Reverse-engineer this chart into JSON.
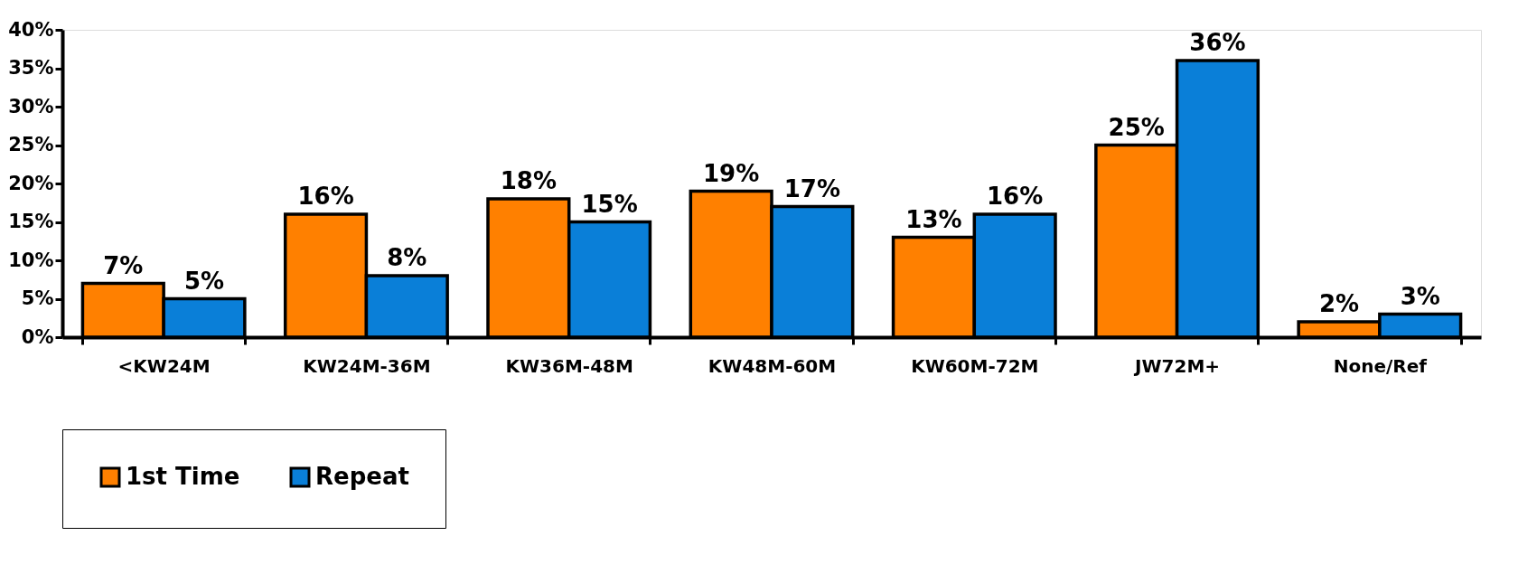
{
  "chart_data": {
    "type": "bar",
    "categories": [
      "<KW24M",
      "KW24M-36M",
      "KW36M-48M",
      "KW48M-60M",
      "KW60M-72M",
      "JW72M+",
      "None/Ref"
    ],
    "series": [
      {
        "name": "1st Time",
        "color": "#ff8000",
        "values": [
          7,
          16,
          18,
          19,
          13,
          25,
          2
        ],
        "value_labels": [
          "7%",
          "16%",
          "18%",
          "19%",
          "13%",
          "25%",
          "2%"
        ]
      },
      {
        "name": "Repeat",
        "color": "#0a7fd8",
        "values": [
          5,
          8,
          15,
          17,
          16,
          36,
          3
        ],
        "value_labels": [
          "5%",
          "8%",
          "15%",
          "17%",
          "16%",
          "36%",
          "3%"
        ]
      }
    ],
    "ylim": [
      0,
      40
    ],
    "yticks": [
      {
        "value": 0,
        "label": "0%"
      },
      {
        "value": 5,
        "label": "5%"
      },
      {
        "value": 10,
        "label": "10%"
      },
      {
        "value": 15,
        "label": "15%"
      },
      {
        "value": 20,
        "label": "20%"
      },
      {
        "value": 25,
        "label": "25%"
      },
      {
        "value": 30,
        "label": "30%"
      },
      {
        "value": 35,
        "label": "35%"
      },
      {
        "value": 40,
        "label": "40%"
      }
    ],
    "grid": false,
    "legend": "bottom"
  }
}
